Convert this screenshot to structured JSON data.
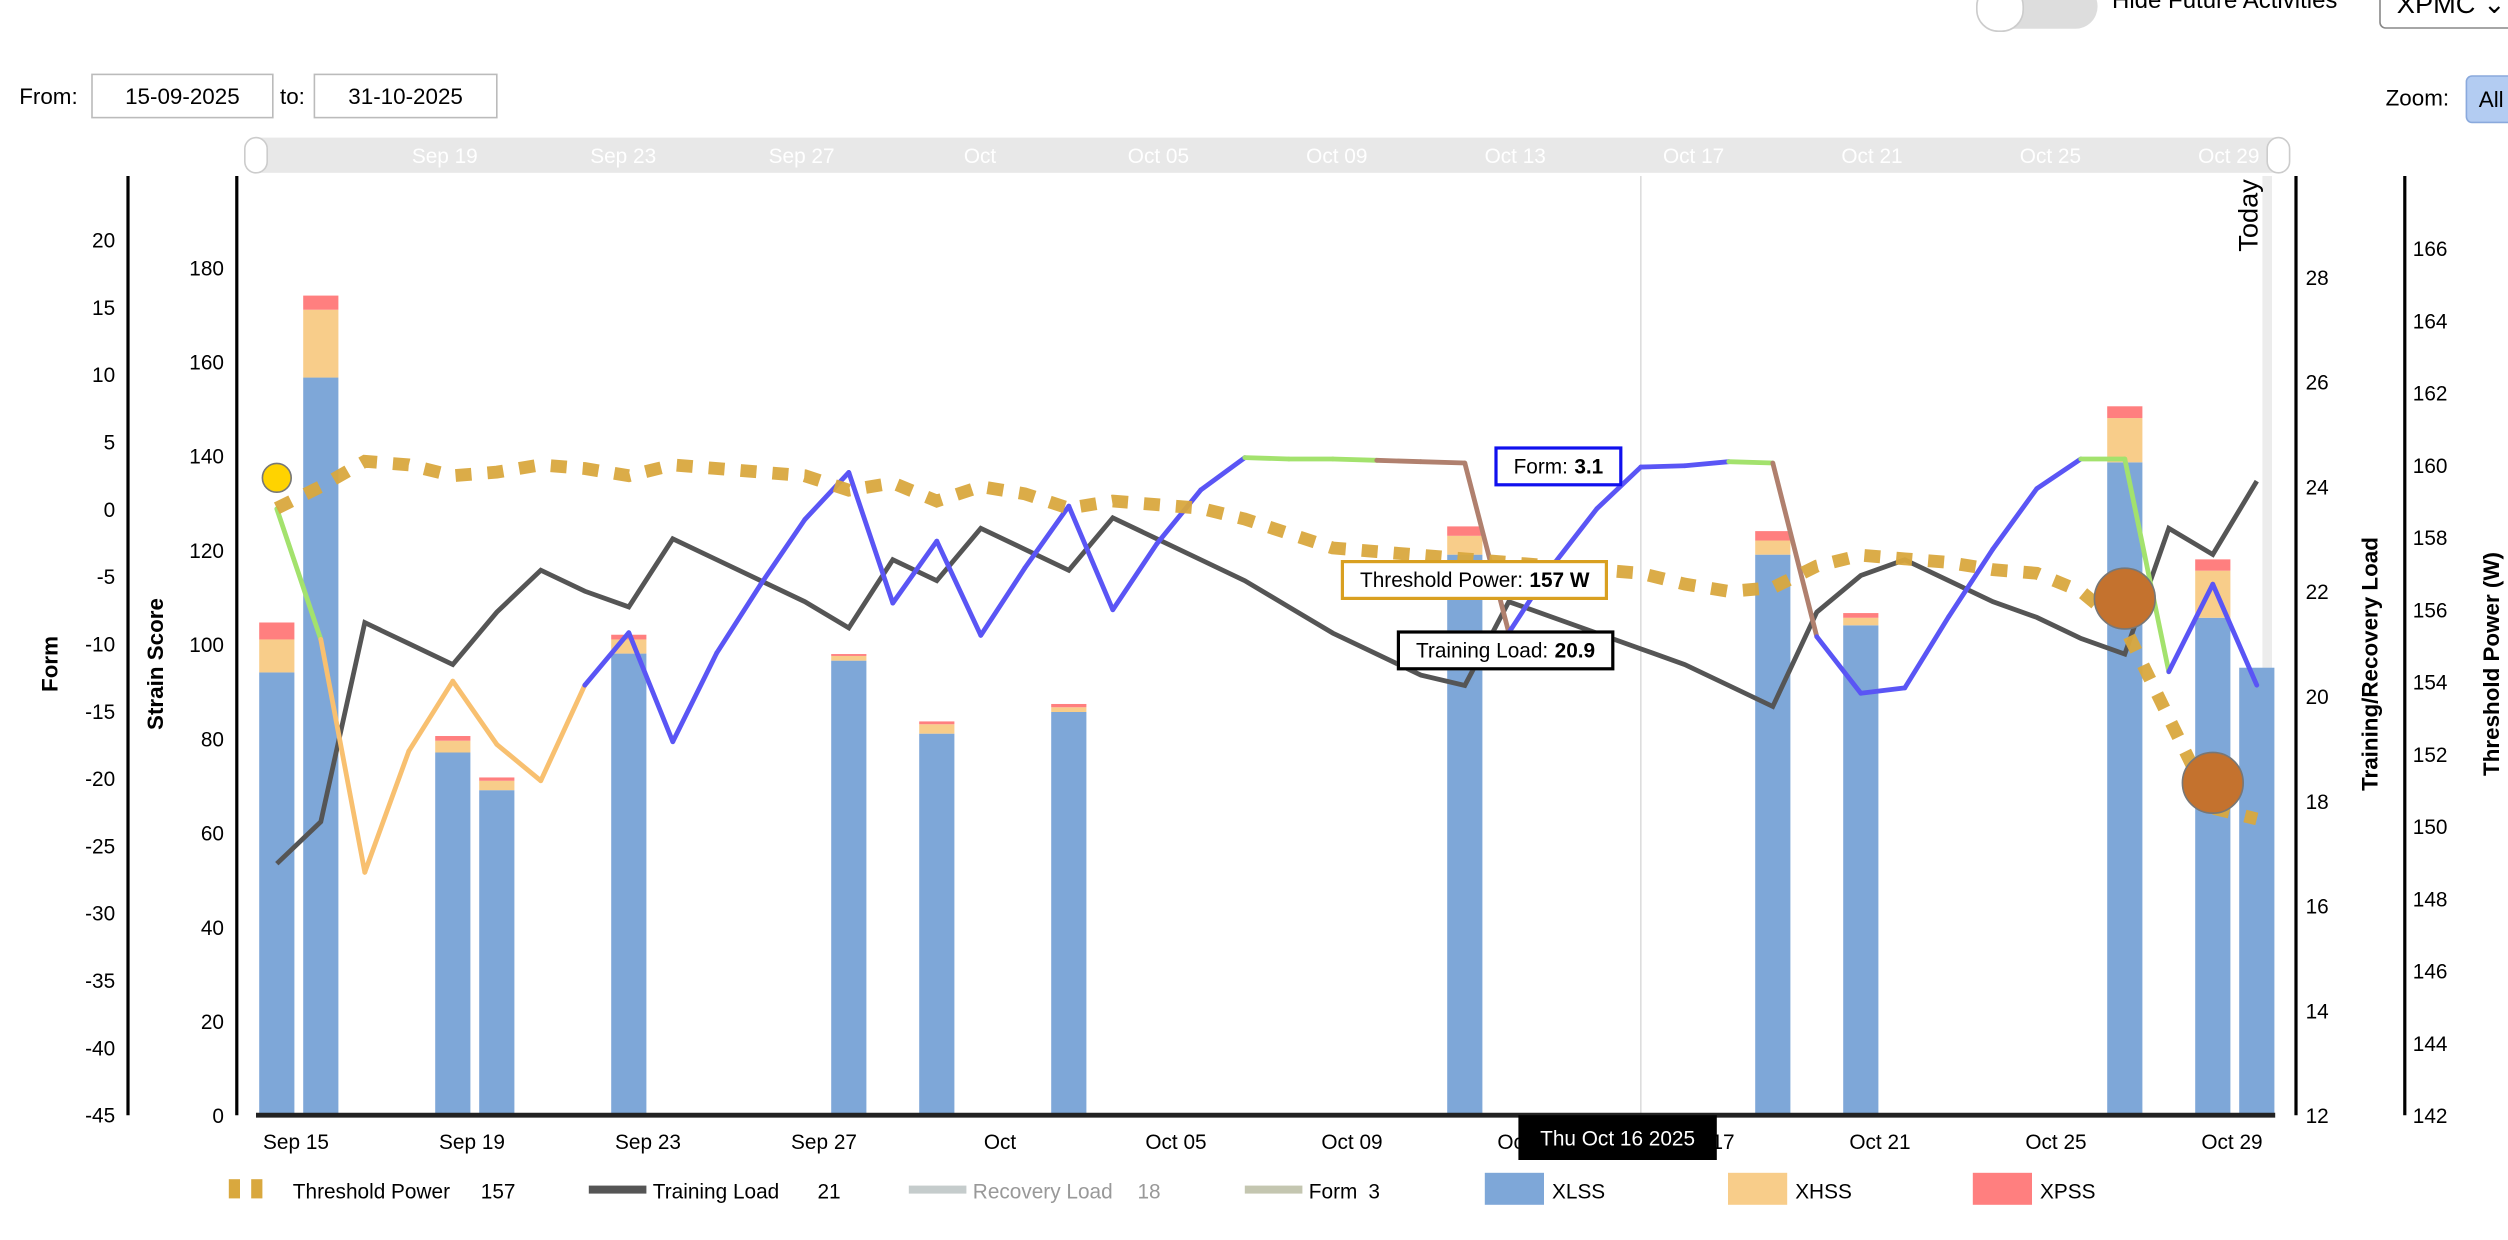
{
  "controls": {
    "hide_future_label": "Hide Future Activities",
    "metric_select": "XPMC",
    "from_label": "From:",
    "from_value": "15-09-2025",
    "to_label": "to:",
    "to_value": "31-10-2025",
    "zoom_label": "Zoom:",
    "zoom_all": "All"
  },
  "navigator": {
    "labels": [
      "Sep 19",
      "Sep 23",
      "Sep 27",
      "Oct",
      "Oct 05",
      "Oct 09",
      "Oct 13",
      "Oct 17",
      "Oct 21",
      "Oct 25",
      "Oct 29"
    ]
  },
  "tooltips": {
    "date": "Thu Oct 16 2025",
    "form_label": "Form:",
    "form_value": "3.1",
    "tp_label": "Threshold Power:",
    "tp_value": "157 W",
    "tl_label": "Training Load:",
    "tl_value": "20.9"
  },
  "today_label": "Today",
  "colors": {
    "xlss": "#7ea7d8",
    "xhss": "#f8cd8a",
    "xpss": "#ff7f7f",
    "training_load": "#555555",
    "threshold_power": "#d9a83e",
    "recovery_load": "#c5cccc",
    "form_legend": "#c4c6b0",
    "form_zones": {
      "green": "#a3e26d",
      "orange": "#f8c070",
      "blue": "#5a55f5",
      "brown": "#b0806e"
    },
    "marker_orange": "#c4722e",
    "marker_yellow": "#ffd300"
  },
  "chart_data": {
    "type": "bar+line",
    "x_start": "2025-09-15",
    "x_days": 46,
    "x_tick_labels": [
      {
        "day": 0,
        "label": "Sep 15"
      },
      {
        "day": 4,
        "label": "Sep 19"
      },
      {
        "day": 8,
        "label": "Sep 23"
      },
      {
        "day": 12,
        "label": "Sep 27"
      },
      {
        "day": 16,
        "label": "Oct"
      },
      {
        "day": 20,
        "label": "Oct 05"
      },
      {
        "day": 24,
        "label": "Oct 09"
      },
      {
        "day": 28,
        "label": "Oct 13"
      },
      {
        "day": 32,
        "label": "Oct 17"
      },
      {
        "day": 36,
        "label": "Oct 21"
      },
      {
        "day": 40,
        "label": "Oct 25"
      },
      {
        "day": 44,
        "label": "Oct 29"
      }
    ],
    "axes": {
      "form": {
        "title": "Form",
        "range": [
          -45,
          20
        ],
        "ticks": [
          20,
          15,
          10,
          5,
          0,
          -5,
          -10,
          -15,
          -20,
          -25,
          -30,
          -35,
          -40,
          -45
        ]
      },
      "strain": {
        "title": "Strain Score",
        "range": [
          0,
          180
        ],
        "ticks": [
          180,
          160,
          140,
          120,
          100,
          80,
          60,
          40,
          20,
          0
        ]
      },
      "load": {
        "title": "Training/Recovery Load",
        "range": [
          12,
          28
        ],
        "ticks": [
          28,
          26,
          24,
          22,
          20,
          18,
          16,
          14,
          12
        ]
      },
      "power": {
        "title": "Threshold Power (W)",
        "range": [
          142,
          166
        ],
        "ticks": [
          166,
          164,
          162,
          160,
          158,
          156,
          154,
          152,
          150,
          148,
          146,
          144,
          142
        ]
      }
    },
    "bars": [
      {
        "day": 0,
        "xlss": 94,
        "xhss": 7,
        "xpss": 3.6
      },
      {
        "day": 1,
        "xlss": 156.6,
        "xhss": 14.4,
        "xpss": 3
      },
      {
        "day": 4,
        "xlss": 77,
        "xhss": 2.5,
        "xpss": 1
      },
      {
        "day": 5,
        "xlss": 69,
        "xhss": 2,
        "xpss": 0.7
      },
      {
        "day": 8,
        "xlss": 98,
        "xhss": 3,
        "xpss": 1
      },
      {
        "day": 13,
        "xlss": 96.5,
        "xhss": 1,
        "xpss": 0.4
      },
      {
        "day": 15,
        "xlss": 81,
        "xhss": 2,
        "xpss": 0.6
      },
      {
        "day": 18,
        "xlss": 85.6,
        "xhss": 1,
        "xpss": 0.7
      },
      {
        "day": 27,
        "xlss": 119,
        "xhss": 4,
        "xpss": 2
      },
      {
        "day": 34,
        "xlss": 119,
        "xhss": 3,
        "xpss": 2
      },
      {
        "day": 36,
        "xlss": 104,
        "xhss": 1.6,
        "xpss": 1
      },
      {
        "day": 42,
        "xlss": 138.6,
        "xhss": 9.4,
        "xpss": 2.5
      },
      {
        "day": 44,
        "xlss": 105.6,
        "xhss": 10,
        "xpss": 2.4
      },
      {
        "day": 45,
        "xlss": 95,
        "xhss": 0,
        "xpss": 0
      }
    ],
    "training_load": [
      16.8,
      17.6,
      21.4,
      21.0,
      20.6,
      21.6,
      22.4,
      22.0,
      21.7,
      23.0,
      22.6,
      22.2,
      21.8,
      21.3,
      22.6,
      22.2,
      23.2,
      22.8,
      22.4,
      23.4,
      23.0,
      22.6,
      22.2,
      21.7,
      21.2,
      20.8,
      20.4,
      20.2,
      21.8,
      21.5,
      21.2,
      20.9,
      20.6,
      20.2,
      19.8,
      21.6,
      22.3,
      22.6,
      22.2,
      21.8,
      21.5,
      21.1,
      20.8,
      23.2,
      22.7,
      24.1
    ],
    "threshold_power": [
      158.8,
      159.4,
      160.1,
      160.0,
      159.7,
      159.8,
      160.0,
      159.9,
      159.7,
      160.0,
      159.9,
      159.8,
      159.7,
      159.3,
      159.5,
      159.0,
      159.4,
      159.2,
      158.8,
      159.0,
      158.9,
      158.8,
      158.5,
      158.1,
      157.7,
      157.6,
      157.5,
      157.4,
      157.3,
      157.2,
      157.1,
      157.0,
      156.7,
      156.5,
      156.6,
      157.2,
      157.5,
      157.4,
      157.3,
      157.1,
      157.0,
      156.5,
      155.5,
      153.0,
      150.5,
      150.2
    ],
    "form": [
      0,
      -9.7,
      -27,
      -18,
      -12.8,
      -17.5,
      -20.2,
      -13.1,
      -9.2,
      -17.3,
      -10.7,
      -5.6,
      -0.8,
      2.7,
      -7,
      -2.4,
      -9.4,
      -4.4,
      0.2,
      -7.5,
      -2.6,
      1.4,
      3.8,
      3.7,
      3.7,
      3.6,
      3.5,
      3.4,
      -9.2,
      -4.2,
      0,
      3.1,
      3.2,
      3.5,
      3.4,
      -9.5,
      -13.7,
      -13.3,
      -8,
      -3,
      1.5,
      3.7,
      3.7,
      -12.1,
      -5.6,
      -13.1
    ],
    "form_segment_zones": [
      "green",
      "orange",
      "orange",
      "orange",
      "orange",
      "orange",
      "orange",
      "blue",
      "blue",
      "blue",
      "blue",
      "blue",
      "blue",
      "blue",
      "blue",
      "blue",
      "blue",
      "blue",
      "blue",
      "blue",
      "blue",
      "blue",
      "green",
      "green",
      "green",
      "brown",
      "brown",
      "brown",
      "blue",
      "blue",
      "blue",
      "blue",
      "blue",
      "green",
      "brown",
      "blue",
      "blue",
      "blue",
      "blue",
      "blue",
      "blue",
      "green",
      "green",
      "blue",
      "blue"
    ],
    "markers": [
      {
        "day": 0,
        "axis": "form",
        "value": 2.3,
        "color": "yellow"
      },
      {
        "day": 42,
        "axis": "power",
        "value": 156.3,
        "color": "orange"
      },
      {
        "day": 44,
        "axis": "power",
        "value": 151.2,
        "color": "orange"
      }
    ],
    "crosshair_day": 31,
    "today_day": 45.5,
    "legend": [
      {
        "key": "threshold_power",
        "label": "Threshold Power",
        "value": "157"
      },
      {
        "key": "training_load",
        "label": "Training Load",
        "value": "21"
      },
      {
        "key": "recovery_load",
        "label": "Recovery Load",
        "value": "18"
      },
      {
        "key": "form_legend",
        "label": "Form",
        "value": "3"
      },
      {
        "key": "xlss",
        "label": "XLSS",
        "value": ""
      },
      {
        "key": "xhss",
        "label": "XHSS",
        "value": ""
      },
      {
        "key": "xpss",
        "label": "XPSS",
        "value": ""
      }
    ]
  }
}
